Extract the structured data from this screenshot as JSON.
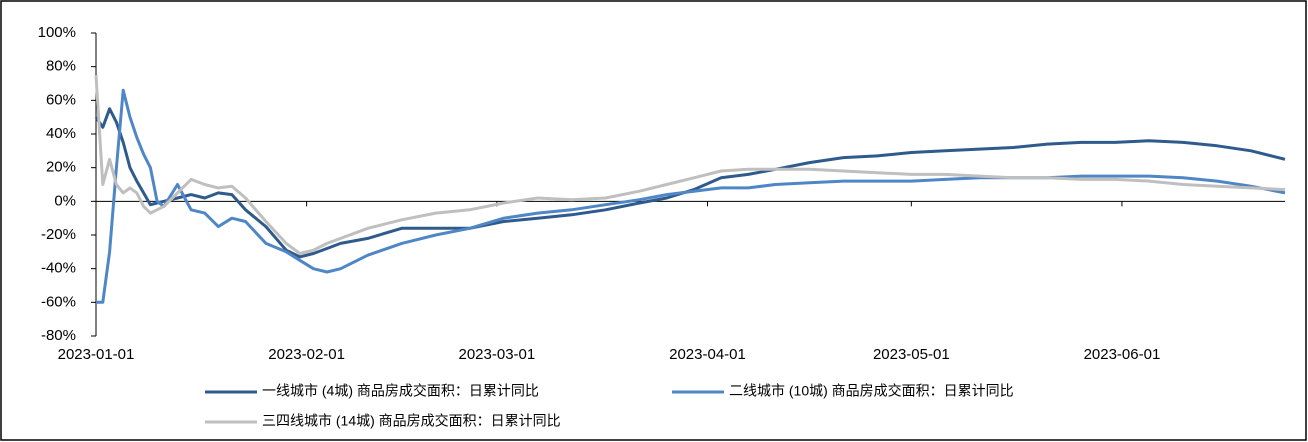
{
  "chart_data": {
    "type": "line",
    "x": [
      "2023-01-01",
      "2023-01-02",
      "2023-01-03",
      "2023-01-04",
      "2023-01-05",
      "2023-01-06",
      "2023-01-07",
      "2023-01-08",
      "2023-01-09",
      "2023-01-10",
      "2023-01-11",
      "2023-01-13",
      "2023-01-15",
      "2023-01-17",
      "2023-01-19",
      "2023-01-21",
      "2023-01-23",
      "2023-01-26",
      "2023-01-29",
      "2023-01-31",
      "2023-02-02",
      "2023-02-04",
      "2023-02-06",
      "2023-02-10",
      "2023-02-15",
      "2023-02-20",
      "2023-02-25",
      "2023-03-02",
      "2023-03-07",
      "2023-03-12",
      "2023-03-17",
      "2023-03-22",
      "2023-03-26",
      "2023-03-30",
      "2023-04-03",
      "2023-04-07",
      "2023-04-11",
      "2023-04-16",
      "2023-04-21",
      "2023-04-26",
      "2023-05-01",
      "2023-05-06",
      "2023-05-11",
      "2023-05-16",
      "2023-05-21",
      "2023-05-26",
      "2023-05-31",
      "2023-06-05",
      "2023-06-10",
      "2023-06-15",
      "2023-06-20",
      "2023-06-25"
    ],
    "series": [
      {
        "name": "一线城市 (4城) 商品房成交面积：日累计同比",
        "color": "#2e5b8c",
        "values": [
          50,
          44,
          55,
          47,
          35,
          20,
          12,
          5,
          -2,
          -1,
          0,
          2,
          4,
          2,
          5,
          4,
          -5,
          -15,
          -29,
          -33,
          -31,
          -28,
          -25,
          -22,
          -16,
          -16,
          -16,
          -12,
          -10,
          -8,
          -5,
          -1,
          2,
          7,
          14,
          16,
          19,
          23,
          26,
          27,
          29,
          30,
          31,
          32,
          34,
          35,
          35,
          36,
          35,
          33,
          30,
          25
        ]
      },
      {
        "name": "二线城市 (10城) 商品房成交面积：日累计同比",
        "color": "#4f86c6",
        "values": [
          -60,
          -60,
          -30,
          20,
          66,
          50,
          38,
          28,
          20,
          0,
          -3,
          10,
          -5,
          -7,
          -15,
          -10,
          -12,
          -25,
          -30,
          -35,
          -40,
          -42,
          -40,
          -32,
          -25,
          -20,
          -16,
          -10,
          -7,
          -5,
          -2,
          1,
          4,
          6,
          8,
          8,
          10,
          11,
          12,
          12,
          12,
          13,
          14,
          14,
          14,
          15,
          15,
          15,
          14,
          12,
          9,
          5
        ]
      },
      {
        "name": "三四线城市 (14城) 商品房成交面积：日累计同比",
        "color": "#bfbfbf",
        "values": [
          75,
          10,
          25,
          10,
          5,
          8,
          5,
          -3,
          -7,
          -5,
          -3,
          5,
          13,
          10,
          8,
          9,
          2,
          -12,
          -25,
          -31,
          -29,
          -25,
          -22,
          -16,
          -11,
          -7,
          -5,
          -1,
          2,
          1,
          2,
          6,
          10,
          14,
          18,
          19,
          19,
          19,
          18,
          17,
          16,
          16,
          15,
          14,
          14,
          13,
          13,
          12,
          10,
          9,
          8,
          7
        ]
      }
    ],
    "xlim": [
      "2023-01-01",
      "2023-06-25"
    ],
    "xticks": [
      "2023-01-01",
      "2023-02-01",
      "2023-03-01",
      "2023-04-01",
      "2023-05-01",
      "2023-06-01"
    ],
    "ylim": [
      -80,
      100
    ],
    "yticks": [
      {
        "value": -80,
        "label": "-80%"
      },
      {
        "value": -60,
        "label": "-60%"
      },
      {
        "value": -40,
        "label": "-40%"
      },
      {
        "value": -20,
        "label": "-20%"
      },
      {
        "value": 0,
        "label": "0%"
      },
      {
        "value": 20,
        "label": "20%"
      },
      {
        "value": 40,
        "label": "40%"
      },
      {
        "value": 60,
        "label": "60%"
      },
      {
        "value": 80,
        "label": "80%"
      },
      {
        "value": 100,
        "label": "100%"
      }
    ]
  }
}
